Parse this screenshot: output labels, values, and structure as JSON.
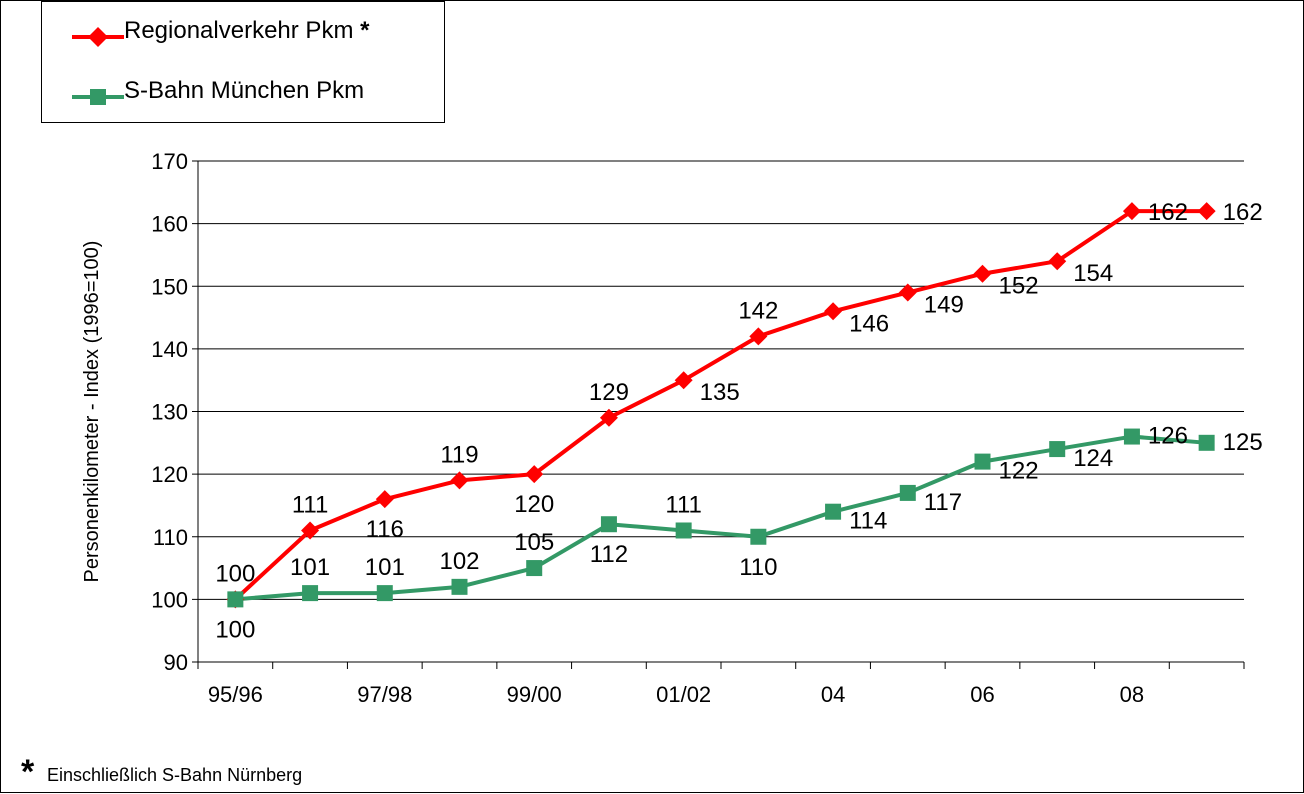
{
  "legend": {
    "items": [
      {
        "label": "Regionalverkehr Pkm",
        "suffix": "*"
      },
      {
        "label": "S-Bahn München Pkm",
        "suffix": ""
      }
    ]
  },
  "footnote": {
    "marker": "*",
    "text": "Einschließlich S-Bahn Nürnberg"
  },
  "chart_data": {
    "type": "line",
    "title": "",
    "xlabel": "",
    "ylabel": "Personenkilometer - Index  (1996=100)",
    "ylim": [
      90,
      170
    ],
    "yticks": [
      90,
      100,
      110,
      120,
      130,
      140,
      150,
      160,
      170
    ],
    "x_categories": [
      "95/96",
      "",
      "97/98",
      "",
      "99/00",
      "",
      "01/02",
      "",
      "04",
      "",
      "06",
      "",
      "08",
      ""
    ],
    "grid": "horizontal",
    "legend_position": "top-left",
    "series": [
      {
        "name": "Regionalverkehr Pkm",
        "color": "#ff0000",
        "marker": "diamond",
        "values": [
          100,
          111,
          116,
          119,
          120,
          129,
          135,
          142,
          146,
          149,
          152,
          154,
          162,
          162
        ]
      },
      {
        "name": "S-Bahn München Pkm",
        "color": "#339966",
        "marker": "square",
        "values": [
          100,
          101,
          101,
          102,
          105,
          112,
          111,
          110,
          114,
          117,
          122,
          124,
          126,
          125
        ]
      }
    ]
  }
}
